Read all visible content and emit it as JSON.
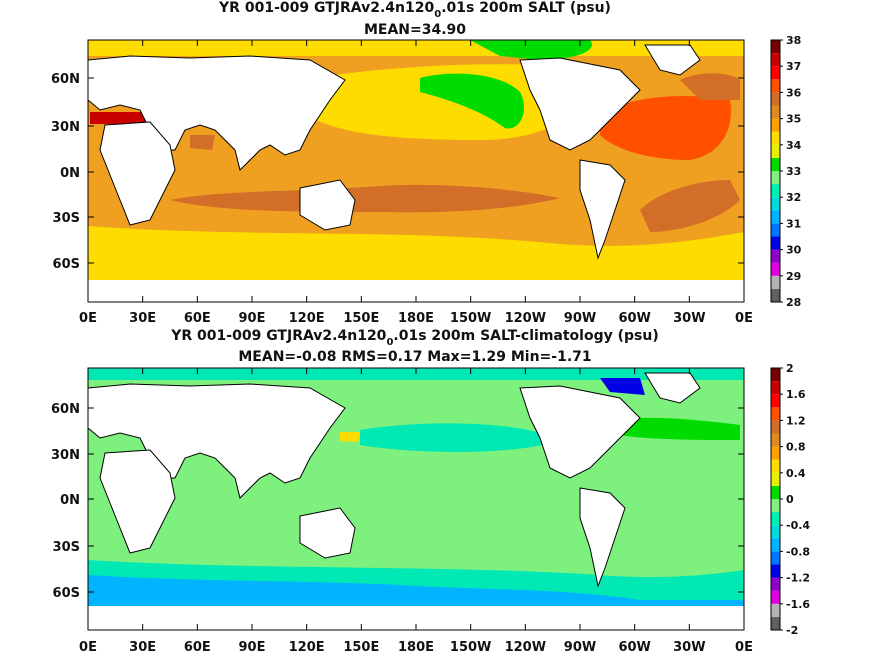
{
  "chart_data": [
    {
      "type": "heatmap",
      "title_parts": [
        "YR 001-009 GTJRAv2.4n120",
        "0",
        ".01s 200m SALT (psu)"
      ],
      "subtitle": "MEAN=34.90",
      "x_ticks": [
        "0E",
        "30E",
        "60E",
        "90E",
        "120E",
        "150E",
        "180E",
        "150W",
        "120W",
        "90W",
        "60W",
        "30W",
        "0E"
      ],
      "y_ticks": [
        "60N",
        "30N",
        "0N",
        "30S",
        "60S"
      ],
      "colorbar": {
        "labels": [
          "38",
          "37",
          "36",
          "35",
          "34",
          "33",
          "32",
          "31",
          "30",
          "29",
          "28"
        ],
        "colors": [
          "#606060",
          "#b4b4b4",
          "#e000e0",
          "#8c00c8",
          "#0000e6",
          "#0078ff",
          "#00b4ff",
          "#00dcdc",
          "#00f0b4",
          "#80f080",
          "#00dc00",
          "#e6f000",
          "#ffdc00",
          "#ffa000",
          "#dc8c1e",
          "#d26e28",
          "#ff5000",
          "#ff0000",
          "#c80000",
          "#780000"
        ]
      },
      "regions": [
        {
          "name": "subtropical-band",
          "color": "#f0a020"
        },
        {
          "name": "north-atlantic-high",
          "color": "#ff5000"
        },
        {
          "name": "southern-ocean",
          "color": "#ffdc00"
        },
        {
          "name": "north-pacific-fresh",
          "color": "#00dc00"
        },
        {
          "name": "arctic-fresh",
          "color": "#00dc00"
        }
      ]
    },
    {
      "type": "heatmap",
      "title_parts": [
        "YR 001-009 GTJRAv2.4n120",
        "0",
        ".01s 200m SALT-climatology (psu)"
      ],
      "subtitle": "MEAN=-0.08   RMS=0.17   Max=1.29   Min=-1.71",
      "x_ticks": [
        "0E",
        "30E",
        "60E",
        "90E",
        "120E",
        "150E",
        "180E",
        "150W",
        "120W",
        "90W",
        "60W",
        "30W",
        "0E"
      ],
      "y_ticks": [
        "60N",
        "30N",
        "0N",
        "30S",
        "60S"
      ],
      "colorbar": {
        "labels": [
          "2",
          "1.6",
          "1.2",
          "0.8",
          "0.4",
          "0",
          "-0.4",
          "-0.8",
          "-1.2",
          "-1.6",
          "-2"
        ],
        "colors": [
          "#606060",
          "#b4b4b4",
          "#e000e0",
          "#8c00c8",
          "#0000e6",
          "#0078ff",
          "#00b4ff",
          "#00dcdc",
          "#00f0b4",
          "#80f080",
          "#00dc00",
          "#e6f000",
          "#ffdc00",
          "#ffa000",
          "#dc8c1e",
          "#d26e28",
          "#ff5000",
          "#ff0000",
          "#c80000",
          "#780000"
        ]
      },
      "regions": [
        {
          "name": "near-zero",
          "color": "#7ef07e"
        },
        {
          "name": "slight-negative",
          "color": "#00e8b4"
        },
        {
          "name": "southern-negative",
          "color": "#00b4ff"
        },
        {
          "name": "positive-patches",
          "color": "#00dc00"
        }
      ]
    }
  ]
}
